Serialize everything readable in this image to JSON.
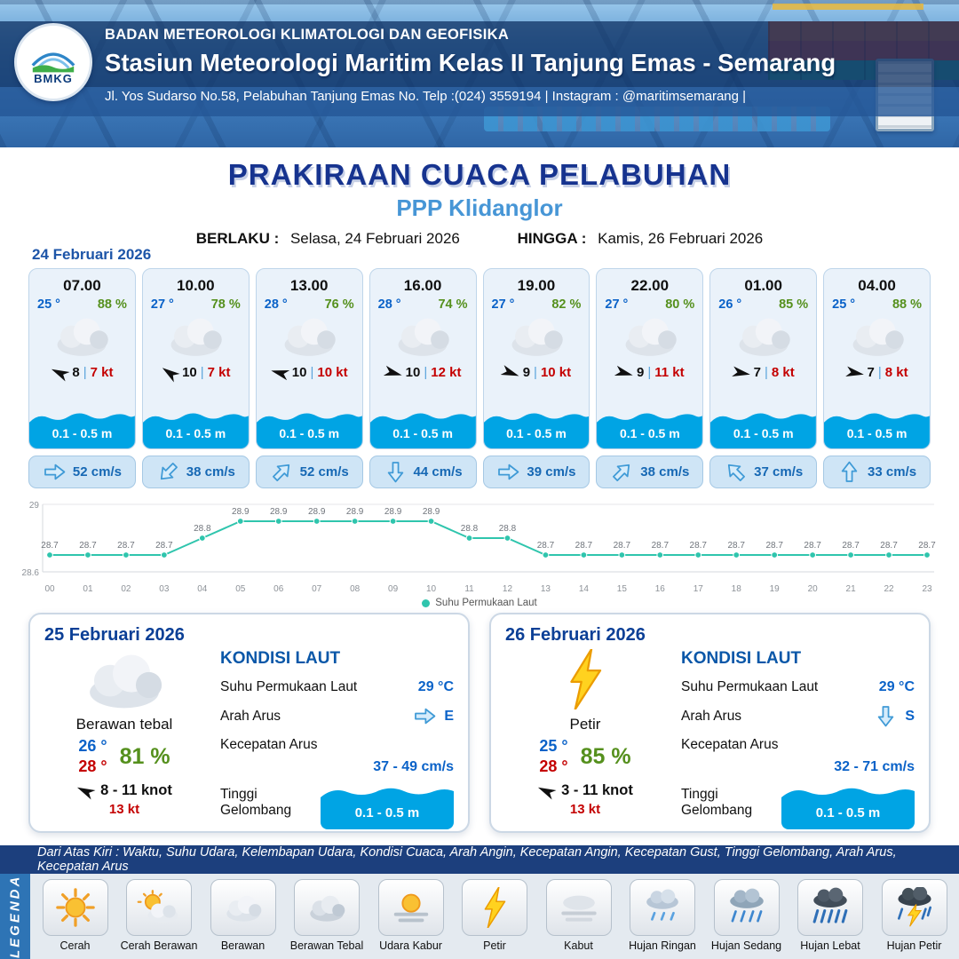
{
  "header": {
    "logo_label": "BMKG",
    "org": "BADAN METEOROLOGI KLIMATOLOGI DAN GEOFISIKA",
    "station": "Stasiun Meteorologi Maritim Kelas II Tanjung Emas - Semarang",
    "address": "Jl. Yos Sudarso No.58, Pelabuhan Tanjung Emas No. Telp :(024) 3559194 | Instagram : @maritimsemarang |"
  },
  "title": {
    "main": "PRAKIRAAN CUACA PELABUHAN",
    "subtitle": "PPP Klidanglor",
    "berlaku_label": "BERLAKU :",
    "berlaku_value": "Selasa, 24 Februari 2026",
    "hingga_label": "HINGGA :",
    "hingga_value": "Kamis, 26 Februari 2026"
  },
  "forecast": {
    "date": "24 Februari 2026",
    "wind_separator": "|",
    "cards": [
      {
        "time": "07.00",
        "temp": "25 °",
        "humidity": "88 %",
        "icon": "cloud",
        "wind_speed": "8",
        "wind_gust": "7 kt",
        "wind_dir_deg": 205,
        "wave": "0.1 - 0.5 m",
        "current": "52 cm/s",
        "current_dir_deg": 0
      },
      {
        "time": "10.00",
        "temp": "27 °",
        "humidity": "78 %",
        "icon": "cloud",
        "wind_speed": "10",
        "wind_gust": "7 kt",
        "wind_dir_deg": 215,
        "wave": "0.1 - 0.5 m",
        "current": "38 cm/s",
        "current_dir_deg": 135
      },
      {
        "time": "13.00",
        "temp": "28 °",
        "humidity": "76 %",
        "icon": "cloud",
        "wind_speed": "10",
        "wind_gust": "10 kt",
        "wind_dir_deg": 195,
        "wave": "0.1 - 0.5 m",
        "current": "52 cm/s",
        "current_dir_deg": -45
      },
      {
        "time": "16.00",
        "temp": "28 °",
        "humidity": "74 %",
        "icon": "cloud",
        "wind_speed": "10",
        "wind_gust": "12 kt",
        "wind_dir_deg": 15,
        "wave": "0.1 - 0.5 m",
        "current": "44 cm/s",
        "current_dir_deg": 90
      },
      {
        "time": "19.00",
        "temp": "27 °",
        "humidity": "82 %",
        "icon": "cloud",
        "wind_speed": "9",
        "wind_gust": "10 kt",
        "wind_dir_deg": 20,
        "wave": "0.1 - 0.5 m",
        "current": "39 cm/s",
        "current_dir_deg": 0
      },
      {
        "time": "22.00",
        "temp": "27 °",
        "humidity": "80 %",
        "icon": "cloud",
        "wind_speed": "9",
        "wind_gust": "11 kt",
        "wind_dir_deg": 15,
        "wave": "0.1 - 0.5 m",
        "current": "38 cm/s",
        "current_dir_deg": -45
      },
      {
        "time": "01.00",
        "temp": "26 °",
        "humidity": "85 %",
        "icon": "cloud",
        "wind_speed": "7",
        "wind_gust": "8 kt",
        "wind_dir_deg": 10,
        "wave": "0.1 - 0.5 m",
        "current": "37 cm/s",
        "current_dir_deg": -135
      },
      {
        "time": "04.00",
        "temp": "25 °",
        "humidity": "88 %",
        "icon": "cloud",
        "wind_speed": "7",
        "wind_gust": "8 kt",
        "wind_dir_deg": 10,
        "wave": "0.1 - 0.5 m",
        "current": "33 cm/s",
        "current_dir_deg": -90
      }
    ]
  },
  "chart_data": {
    "type": "line",
    "series_name": "Suhu Permukaan Laut",
    "x": [
      "00",
      "01",
      "02",
      "03",
      "04",
      "05",
      "06",
      "07",
      "08",
      "09",
      "10",
      "11",
      "12",
      "13",
      "14",
      "15",
      "16",
      "17",
      "18",
      "19",
      "20",
      "21",
      "22",
      "23"
    ],
    "values": [
      28.7,
      28.7,
      28.7,
      28.7,
      28.8,
      28.9,
      28.9,
      28.9,
      28.9,
      28.9,
      28.9,
      28.8,
      28.8,
      28.7,
      28.7,
      28.7,
      28.7,
      28.7,
      28.7,
      28.7,
      28.7,
      28.7,
      28.7,
      28.7
    ],
    "ylim": [
      28.6,
      29
    ],
    "line_color": "#2fc5ad",
    "legend_position": "bottom",
    "grid": "minimal"
  },
  "days": [
    {
      "date": "25 Februari 2026",
      "icon": "cloud",
      "condition": "Berawan tebal",
      "temp_min": "26 °",
      "temp_max": "28 °",
      "humidity": "81 %",
      "wind_range": "8 - 11 knot",
      "gust": "13 kt",
      "wind_dir_deg": 205,
      "sea": {
        "title": "KONDISI LAUT",
        "sst_label": "Suhu Permukaan Laut",
        "sst": "29 °C",
        "arah_label": "Arah Arus",
        "arah": "E",
        "arah_deg": 0,
        "kecepatan_label": "Kecepatan Arus",
        "kecepatan": "37 - 49 cm/s",
        "gelombang_label": "Tinggi Gelombang",
        "gelombang": "0.1 - 0.5 m"
      }
    },
    {
      "date": "26 Februari 2026",
      "icon": "lightning",
      "condition": "Petir",
      "temp_min": "25 °",
      "temp_max": "28 °",
      "humidity": "85 %",
      "wind_range": "3 - 11 knot",
      "gust": "13 kt",
      "wind_dir_deg": 205,
      "sea": {
        "title": "KONDISI LAUT",
        "sst_label": "Suhu Permukaan Laut",
        "sst": "29 °C",
        "arah_label": "Arah Arus",
        "arah": "S",
        "arah_deg": 90,
        "kecepatan_label": "Kecepatan Arus",
        "kecepatan": "32 - 71 cm/s",
        "gelombang_label": "Tinggi Gelombang",
        "gelombang": "0.1 - 0.5 m"
      }
    }
  ],
  "legend": {
    "ribbon": "LEGENDA",
    "note": "Dari Atas Kiri : Waktu, Suhu Udara, Kelembapan Udara, Kondisi Cuaca, Arah Angin, Kecepatan Angin, Kecepatan Gust, Tinggi Gelombang, Arah Arus, Kecepatan Arus",
    "items": [
      {
        "label": "Cerah",
        "icon": "sun"
      },
      {
        "label": "Cerah Berawan",
        "icon": "sun-cloud"
      },
      {
        "label": "Berawan",
        "icon": "cloud"
      },
      {
        "label": "Berawan Tebal",
        "icon": "cloud-thick"
      },
      {
        "label": "Udara Kabur",
        "icon": "haze"
      },
      {
        "label": "Petir",
        "icon": "lightning"
      },
      {
        "label": "Kabut",
        "icon": "fog"
      },
      {
        "label": "Hujan Ringan",
        "icon": "rain-light"
      },
      {
        "label": "Hujan Sedang",
        "icon": "rain-mid"
      },
      {
        "label": "Hujan Lebat",
        "icon": "rain-heavy"
      },
      {
        "label": "Hujan Petir",
        "icon": "rain-storm"
      }
    ]
  }
}
